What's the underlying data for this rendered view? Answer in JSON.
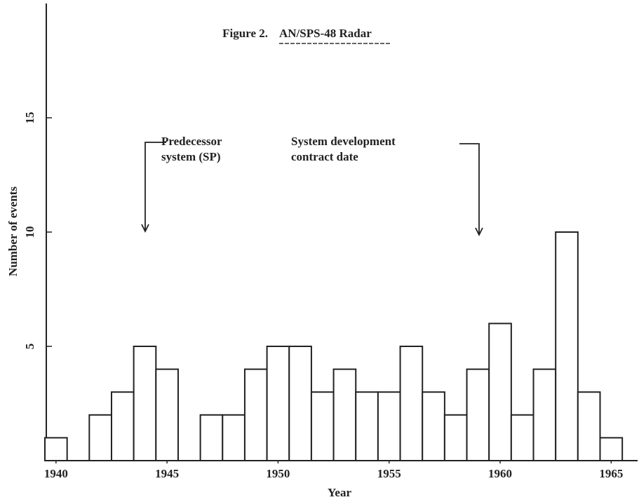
{
  "chart_data": {
    "type": "histogram",
    "figure_label": "Figure 2.",
    "title": "AN/SPS-48 Radar",
    "x_label": "Year",
    "y_label": "Number of events",
    "bins": [
      1939.5,
      1940.5,
      1941.5,
      1942.5,
      1943.5,
      1944.5,
      1945.5,
      1946.5,
      1947.5,
      1948.5,
      1949.5,
      1950.5,
      1951.5,
      1952.5,
      1953.5,
      1954.5,
      1955.5,
      1956.5,
      1957.5,
      1958.5,
      1959.5,
      1960.5,
      1961.5,
      1962.5,
      1963.5,
      1964.5,
      1965.5
    ],
    "counts": [
      1,
      0,
      2,
      3,
      5,
      4,
      0,
      2,
      2,
      4,
      5,
      5,
      3,
      4,
      3,
      3,
      5,
      3,
      2,
      4,
      6,
      2,
      4,
      10,
      3,
      1
    ],
    "xlim": [
      1939.5,
      1966
    ],
    "ylim": [
      0,
      20
    ],
    "xticks": [
      1940,
      1945,
      1950,
      1955,
      1960,
      1965
    ],
    "yticks": [
      5,
      10,
      15
    ],
    "annotations": [
      {
        "lines": [
          "Predecessor",
          "system (SP)"
        ]
      },
      {
        "lines": [
          "System development",
          "contract date"
        ]
      }
    ],
    "color": "#ffffff"
  }
}
